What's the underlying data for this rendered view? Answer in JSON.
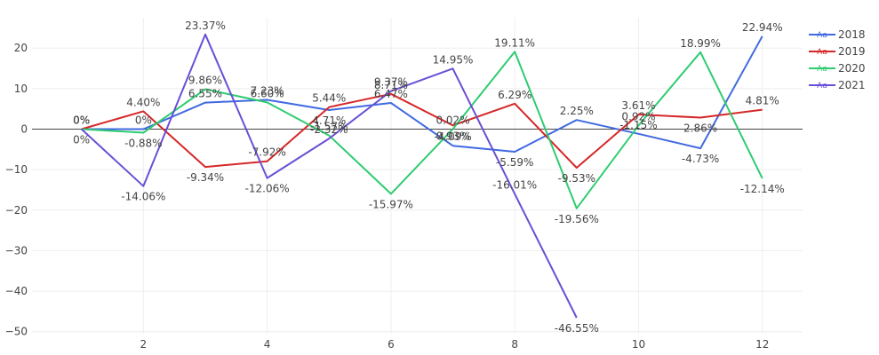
{
  "chart_data": {
    "type": "line",
    "title": "",
    "xlabel": "",
    "ylabel": "",
    "x": [
      1,
      2,
      3,
      4,
      5,
      6,
      7,
      8,
      9,
      10,
      11,
      12
    ],
    "xlim": [
      0.2,
      12.65
    ],
    "ylim": [
      -50.5,
      27.5
    ],
    "x_ticks": [
      2,
      4,
      6,
      8,
      10,
      12
    ],
    "y_ticks": [
      20,
      10,
      0,
      -10,
      -20,
      -30,
      -40,
      -50
    ],
    "grid": true,
    "legend_position": "top-right",
    "legend_symbol": "Aa",
    "series": [
      {
        "name": "2018",
        "color": "#4169e1",
        "values": [
          0,
          0,
          6.55,
          7.23,
          4.71,
          6.47,
          -4.09,
          -5.59,
          2.25,
          -1.15,
          -4.73,
          22.94
        ],
        "labels": [
          "0%",
          "0%",
          "6.55%",
          "7.23%",
          "4.71%",
          "6.47%",
          "-4.09%",
          "-5.59%",
          "2.25%",
          "-1.15%",
          "-4.73%",
          "22.94%"
        ]
      },
      {
        "name": "2019",
        "color": "#d62728",
        "values": [
          0,
          4.4,
          -9.34,
          -7.92,
          5.44,
          8.71,
          0.93,
          6.29,
          -9.53,
          3.61,
          2.86,
          4.81
        ],
        "labels": [
          "0%",
          "4.40%",
          "-9.34%",
          "-7.92%",
          "5.44%",
          "8.71%",
          "0.93%",
          "6.29%",
          "-9.53%",
          "3.61%",
          "2.86%",
          "4.81%"
        ]
      },
      {
        "name": "2020",
        "color": "#2ecc71",
        "values": [
          0,
          -0.88,
          9.86,
          6.6,
          -1.57,
          -15.97,
          0.02,
          19.11,
          -19.56,
          0.92,
          18.99,
          -12.14
        ],
        "labels": [
          "0%",
          "-0.88%",
          "9.86%",
          "6.60%",
          "-1.57%",
          "-15.97%",
          "0.02%",
          "19.11%",
          "-19.56%",
          "0.92%",
          "18.99%",
          "-12.14%"
        ]
      },
      {
        "name": "2021",
        "color": "#6a4fd6",
        "values": [
          0,
          -14.06,
          23.37,
          -12.06,
          -2.32,
          9.37,
          14.95,
          -16.01,
          -46.55,
          null,
          null,
          null
        ],
        "labels": [
          "0%",
          "-14.06%",
          "23.37%",
          "-12.06%",
          "-2.32%",
          "9.37%",
          "14.95%",
          "-16.01%",
          "-46.55%",
          null,
          null,
          null
        ]
      }
    ]
  }
}
